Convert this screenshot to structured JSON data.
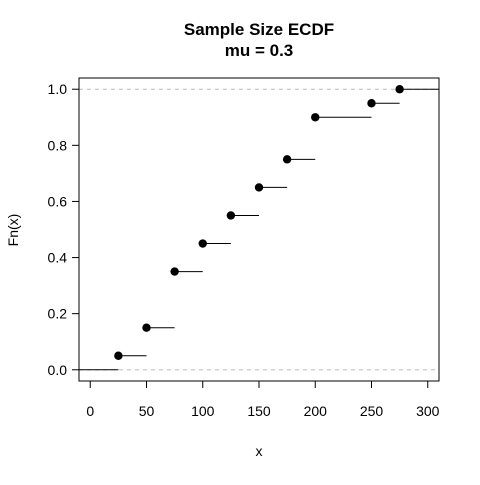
{
  "chart_data": {
    "type": "step",
    "title": "Sample Size ECDF",
    "subtitle": "mu = 0.3",
    "xlabel": "x",
    "ylabel": "Fn(x)",
    "xlim": [
      -10,
      310
    ],
    "ylim": [
      -0.04,
      1.04
    ],
    "xticks": [
      0,
      50,
      100,
      150,
      200,
      250,
      300
    ],
    "yticks": [
      0.0,
      0.2,
      0.4,
      0.6,
      0.8,
      1.0
    ],
    "ytick_labels": [
      "0.0",
      "0.2",
      "0.4",
      "0.6",
      "0.8",
      "1.0"
    ],
    "points": [
      {
        "x": 25,
        "y": 0.05
      },
      {
        "x": 50,
        "y": 0.15
      },
      {
        "x": 75,
        "y": 0.35
      },
      {
        "x": 100,
        "y": 0.45
      },
      {
        "x": 125,
        "y": 0.55
      },
      {
        "x": 150,
        "y": 0.65
      },
      {
        "x": 175,
        "y": 0.75
      },
      {
        "x": 200,
        "y": 0.9
      },
      {
        "x": 250,
        "y": 0.95
      },
      {
        "x": 275,
        "y": 1.0
      }
    ],
    "reference_lines": [
      0,
      1
    ],
    "grid": false,
    "colors": {
      "points": "#000000",
      "steps": "#000000",
      "reference": "#bebebe"
    }
  }
}
